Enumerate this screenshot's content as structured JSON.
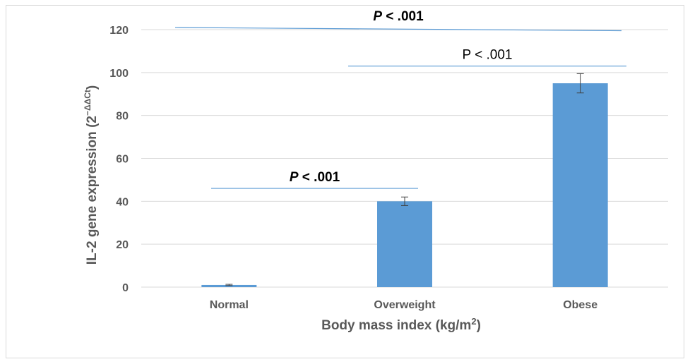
{
  "chart_data": {
    "type": "bar",
    "categories": [
      "Normal",
      "Overweight",
      "Obese"
    ],
    "values": [
      1,
      40,
      95
    ],
    "errors": [
      0.3,
      2,
      4.5
    ],
    "xlabel": "Body mass index (kg/m",
    "xlabel_sup": "2",
    "xlabel_end": ")",
    "ylabel": "IL-2 gene expression (2",
    "ylabel_sup": "−ΔΔCt",
    "ylabel_end": ")",
    "ylim": [
      0,
      120
    ],
    "yticks": [
      "0",
      "20",
      "40",
      "60",
      "80",
      "100",
      "120"
    ],
    "grid": true,
    "bar_color": "#5b9bd5",
    "grid_color": "#d9d9d9",
    "bracket_color": "#5b9bd5",
    "annotations": [
      {
        "p": "P",
        "text": " < .001",
        "from": "Normal",
        "to": "Obese",
        "y_start": 121,
        "y_end": 119.5,
        "bold": true
      },
      {
        "p": "P",
        "text": " < .001",
        "from": "Overweight",
        "to": "Obese",
        "y_start": 103,
        "y_end": 103,
        "bold": false
      },
      {
        "p": "P",
        "text": " < .001",
        "from": "Normal",
        "to": "Overweight",
        "y_start": 46,
        "y_end": 46,
        "bold": true
      }
    ]
  }
}
